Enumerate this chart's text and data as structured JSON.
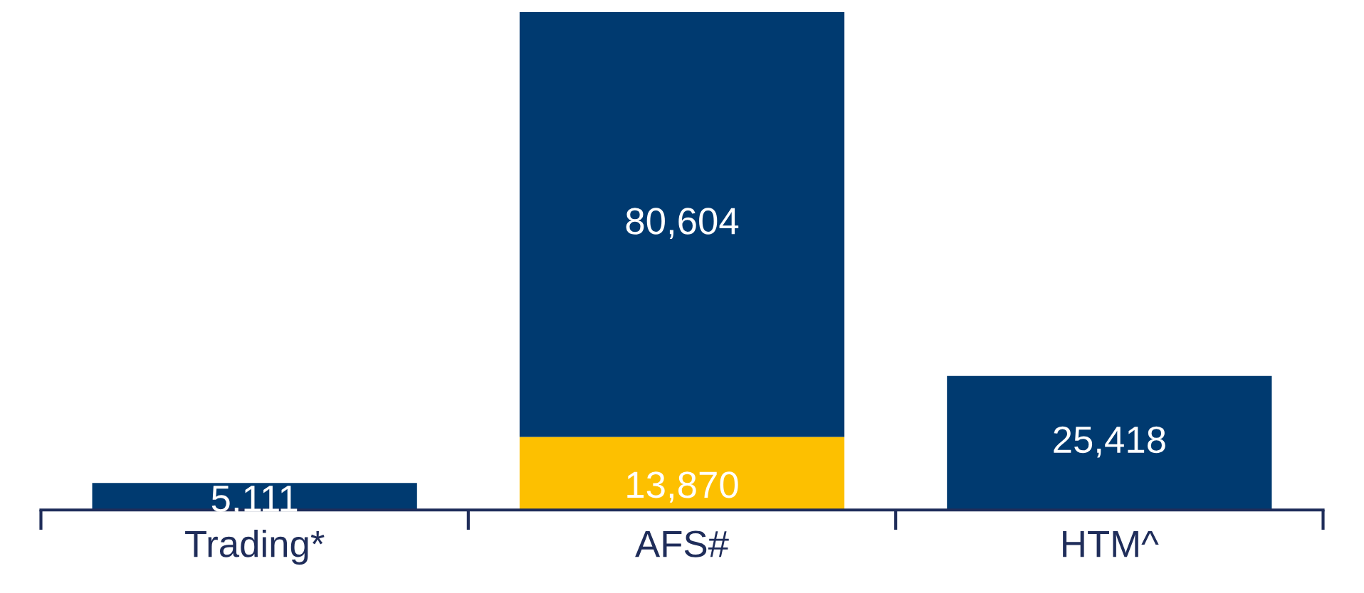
{
  "chart_data": {
    "type": "bar",
    "stacked": true,
    "categories": [
      "Trading*",
      "AFS#",
      "HTM^"
    ],
    "series": [
      {
        "color": "#fdc000",
        "values": [
          null,
          13870,
          null
        ],
        "value_labels": [
          null,
          "13,870",
          null
        ]
      },
      {
        "color": "#003a70",
        "values": [
          5111,
          80604,
          25418
        ],
        "value_labels": [
          "5,111",
          "80,604",
          "25,418"
        ]
      }
    ],
    "grid": false,
    "legend": false
  }
}
